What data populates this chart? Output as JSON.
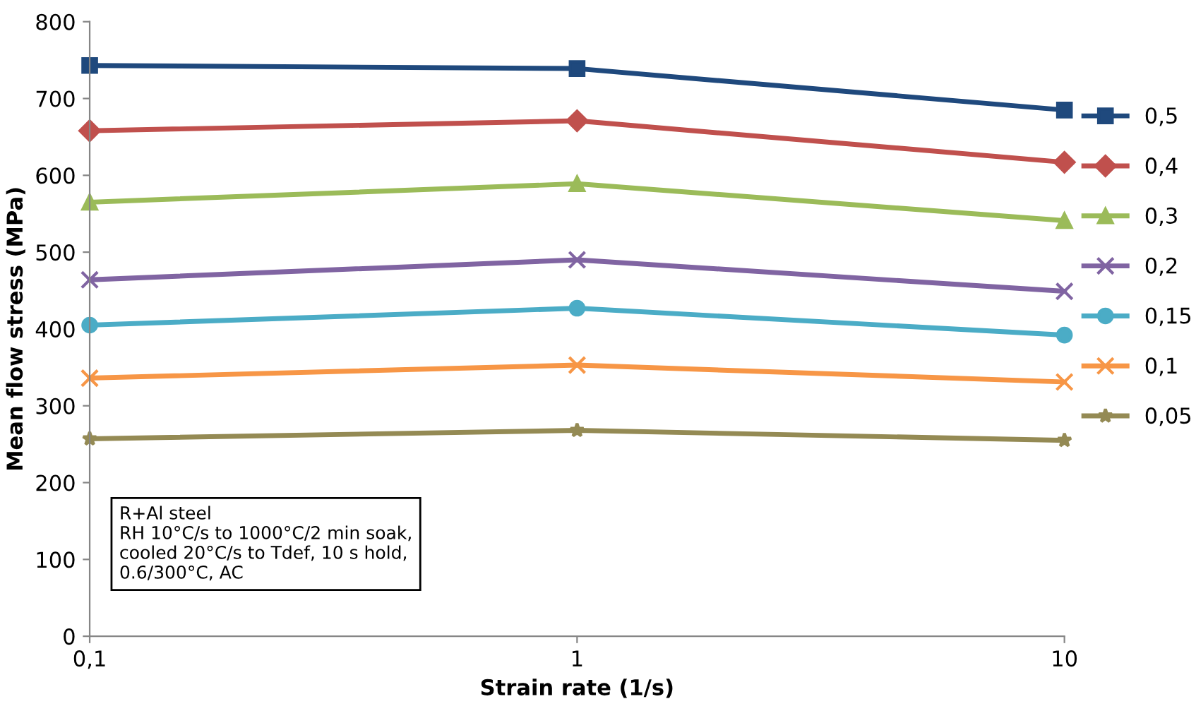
{
  "chart_data": {
    "type": "line",
    "xlabel": "Strain rate (1/s)",
    "ylabel": "Mean flow stress (MPa)",
    "x": [
      0.1,
      1,
      10
    ],
    "log": "x",
    "xlim": [
      0.1,
      10
    ],
    "xticks": [
      {
        "value": 0.1,
        "label": "0,1"
      },
      1,
      10
    ],
    "ylim": [
      0,
      800
    ],
    "yticks": [
      0,
      100,
      200,
      300,
      400,
      500,
      600,
      700,
      800
    ],
    "grid": false,
    "legend": "right",
    "line_style": "solid",
    "series": [
      {
        "name": "0,5",
        "color": "#1f497d",
        "marker": "square",
        "values": [
          743,
          739,
          685
        ]
      },
      {
        "name": "0,4",
        "color": "#c0504d",
        "marker": "diamond",
        "values": [
          658,
          671,
          617
        ]
      },
      {
        "name": "0,3",
        "color": "#9bbb59",
        "marker": "triangle",
        "values": [
          565,
          589,
          541
        ]
      },
      {
        "name": "0,2",
        "color": "#8064a2",
        "marker": "cross",
        "values": [
          464,
          490,
          449
        ]
      },
      {
        "name": "0,15",
        "color": "#4bacc6",
        "marker": "circle",
        "values": [
          405,
          427,
          392
        ]
      },
      {
        "name": "0,1",
        "color": "#f79646",
        "marker": "cross",
        "values": [
          336,
          353,
          331
        ]
      },
      {
        "name": "0,05",
        "color": "#948a54",
        "marker": "star",
        "values": [
          257,
          268,
          255
        ]
      }
    ],
    "annotations": [
      "R+Al steel\nRH 10°C/s to 1000°C/2 min soak,\ncooled 20°C/s to Tdef, 10 s hold,\n0.6/300°C, AC"
    ]
  }
}
